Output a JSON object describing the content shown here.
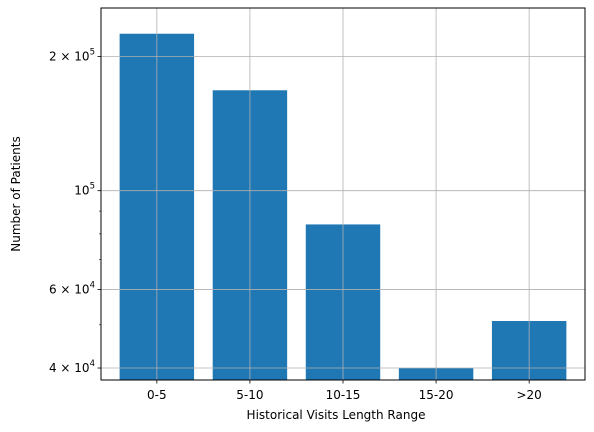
{
  "chart_data": {
    "type": "bar",
    "title": "",
    "xlabel": "Historical Visits Length Range",
    "ylabel": "Number of Patients",
    "categories": [
      "0-5",
      "5-10",
      "10-15",
      "15-20",
      ">20"
    ],
    "values": [
      225000,
      168000,
      84000,
      40000,
      51000
    ],
    "y_scale": "log",
    "ylim": [
      37600,
      257000
    ],
    "y_major_ticks": [
      {
        "value": 40000,
        "mantissa": "4",
        "base": "10",
        "exponent": "4"
      },
      {
        "value": 60000,
        "mantissa": "6",
        "base": "10",
        "exponent": "4"
      },
      {
        "value": 100000,
        "mantissa": "",
        "base": "10",
        "exponent": "5"
      },
      {
        "value": 200000,
        "mantissa": "2",
        "base": "10",
        "exponent": "5"
      }
    ],
    "y_minor_ticks": [
      50000,
      70000,
      80000,
      90000
    ],
    "grid": true,
    "bar_color": "#1f77b4",
    "grid_color": "#b0b0b0"
  }
}
